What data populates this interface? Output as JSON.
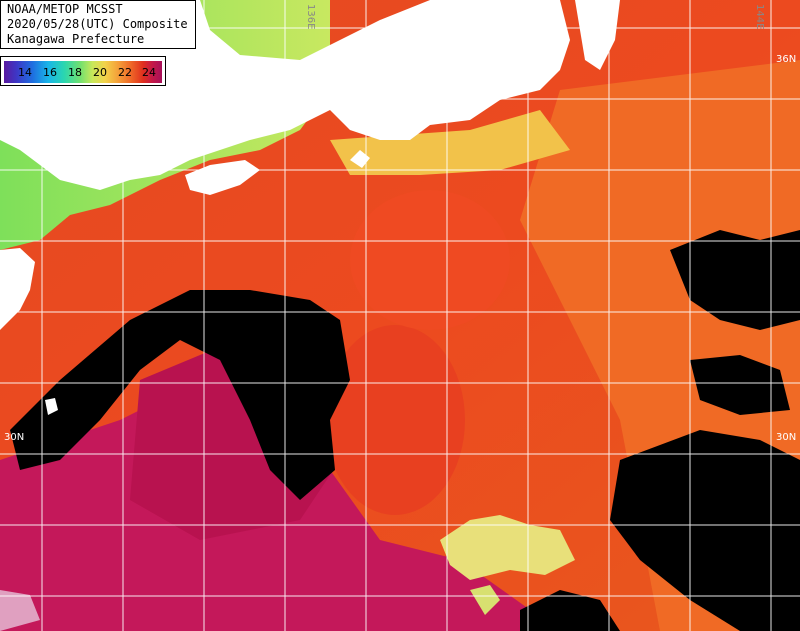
{
  "title_lines": [
    "NOAA/METOP MCSST",
    "2020/05/28(UTC) Composite",
    "Kanagawa Prefecture"
  ],
  "legend": {
    "ticks": [
      "14",
      "16",
      "18",
      "20",
      "22",
      "24"
    ]
  },
  "grid_labels": {
    "lon_136": "136E",
    "lon_144": "144E",
    "lat_36_right": "36N",
    "lat_30_left": "30N",
    "lat_30_right": "30N"
  },
  "colors": {
    "land": "#ffffff",
    "cloud": "#000000",
    "sea_warm": "#e63a1e",
    "sea_hot": "#b0105a",
    "sea_cool": "#7ee05a",
    "grid": "#ffffff"
  }
}
